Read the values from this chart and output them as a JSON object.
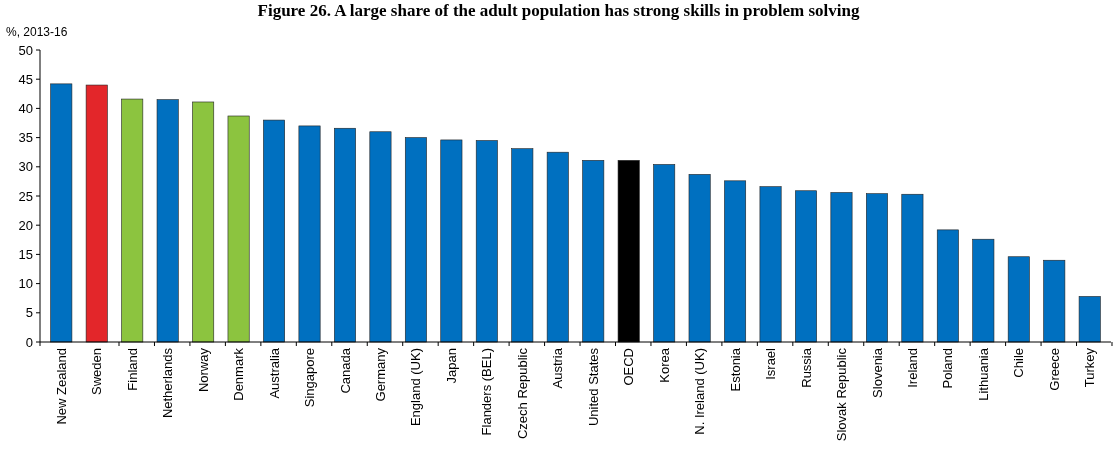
{
  "chart_data": {
    "type": "bar",
    "title": "Figure 26. A large share of the adult population has strong skills in problem solving",
    "ylabel": "%, 2013-16",
    "categories": [
      "New Zealand",
      "Sweden",
      "Finland",
      "Netherlands",
      "Norway",
      "Denmark",
      "Australia",
      "Singapore",
      "Canada",
      "Germany",
      "England (UK)",
      "Japan",
      "Flanders (BEL)",
      "Czech Republic",
      "Austria",
      "United States",
      "OECD",
      "Korea",
      "N. Ireland (UK)",
      "Estonia",
      "Israel",
      "Russia",
      "Slovak Republic",
      "Slovenia",
      "Ireland",
      "Poland",
      "Lithuania",
      "Chile",
      "Greece",
      "Turkey"
    ],
    "values": [
      44.2,
      44.0,
      41.6,
      41.5,
      41.1,
      38.7,
      38.0,
      37.0,
      36.6,
      36.0,
      35.0,
      34.6,
      34.5,
      33.1,
      32.5,
      31.1,
      31.1,
      30.4,
      28.7,
      27.6,
      26.6,
      25.9,
      25.6,
      25.4,
      25.3,
      19.2,
      17.6,
      14.6,
      14.0,
      7.8
    ],
    "colors": [
      "#0070c0",
      "#e3262a",
      "#8cc43f",
      "#0070c0",
      "#8cc43f",
      "#8cc43f",
      "#0070c0",
      "#0070c0",
      "#0070c0",
      "#0070c0",
      "#0070c0",
      "#0070c0",
      "#0070c0",
      "#0070c0",
      "#0070c0",
      "#0070c0",
      "#000000",
      "#0070c0",
      "#0070c0",
      "#0070c0",
      "#0070c0",
      "#0070c0",
      "#0070c0",
      "#0070c0",
      "#0070c0",
      "#0070c0",
      "#0070c0",
      "#0070c0",
      "#0070c0",
      "#0070c0"
    ],
    "ylim": [
      0,
      50
    ],
    "yticks": [
      0,
      5,
      10,
      15,
      20,
      25,
      30,
      35,
      40,
      45,
      50
    ],
    "grid": false
  }
}
